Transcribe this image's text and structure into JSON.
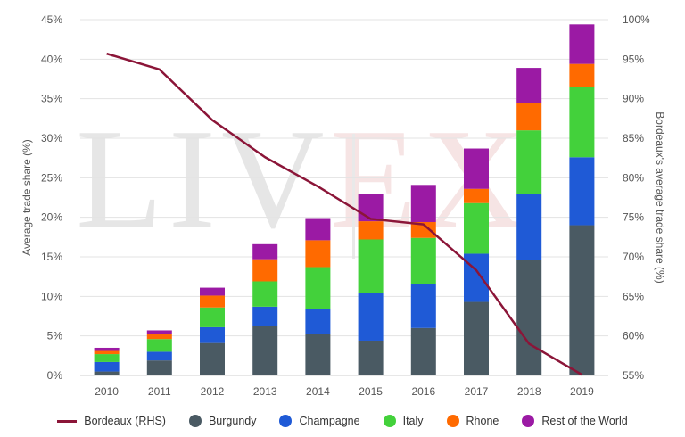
{
  "chart_data": {
    "type": "bar",
    "stacked": true,
    "categories": [
      "2010",
      "2011",
      "2012",
      "2013",
      "2014",
      "2015",
      "2016",
      "2017",
      "2018",
      "2019"
    ],
    "series": [
      {
        "name": "Burgundy",
        "color": "#4a5a63",
        "values": [
          0.5,
          1.9,
          4.1,
          6.3,
          5.3,
          4.4,
          6.0,
          9.3,
          14.6,
          19.0
        ]
      },
      {
        "name": "Champagne",
        "color": "#1f5ad6",
        "values": [
          1.2,
          1.1,
          2.0,
          2.4,
          3.1,
          6.0,
          5.6,
          6.1,
          8.4,
          8.6
        ]
      },
      {
        "name": "Italy",
        "color": "#43d13b",
        "values": [
          1.0,
          1.6,
          2.5,
          3.2,
          5.3,
          6.8,
          5.8,
          6.4,
          8.0,
          8.9
        ]
      },
      {
        "name": "Rhone",
        "color": "#ff6a00",
        "values": [
          0.4,
          0.7,
          1.5,
          2.8,
          3.4,
          2.3,
          2.0,
          1.8,
          3.4,
          2.9
        ]
      },
      {
        "name": "Rest of the World",
        "color": "#9b1aa4",
        "values": [
          0.4,
          0.4,
          1.0,
          1.9,
          2.8,
          3.4,
          4.7,
          5.1,
          4.5,
          5.0
        ]
      }
    ],
    "line": {
      "name": "Bordeaux (RHS)",
      "color": "#8b1538",
      "values": [
        95.7,
        93.7,
        87.3,
        82.6,
        78.9,
        74.8,
        74.1,
        68.3,
        59.0,
        55.1
      ]
    },
    "ylim_left": [
      0,
      45
    ],
    "ylim_right": [
      55,
      100
    ],
    "yticks_left": [
      "0%",
      "5%",
      "10%",
      "15%",
      "20%",
      "25%",
      "30%",
      "35%",
      "40%",
      "45%"
    ],
    "yticks_right": [
      "55%",
      "60%",
      "65%",
      "70%",
      "75%",
      "80%",
      "85%",
      "90%",
      "95%",
      "100%"
    ],
    "ylabel_left": "Average trade share (%)",
    "ylabel_right": "Bordeaux's average trade share (%)",
    "grid": true,
    "legend_position": "bottom"
  },
  "watermark": {
    "left": "LIV",
    "right": "EX"
  },
  "legend": {
    "bordeaux": "Bordeaux (RHS)",
    "burgundy": "Burgundy",
    "champagne": "Champagne",
    "italy": "Italy",
    "rhone": "Rhone",
    "rest": "Rest of the World"
  },
  "colors": {
    "line": "#8b1538",
    "burgundy": "#4a5a63",
    "champagne": "#1f5ad6",
    "italy": "#43d13b",
    "rhone": "#ff6a00",
    "rest": "#9b1aa4"
  }
}
